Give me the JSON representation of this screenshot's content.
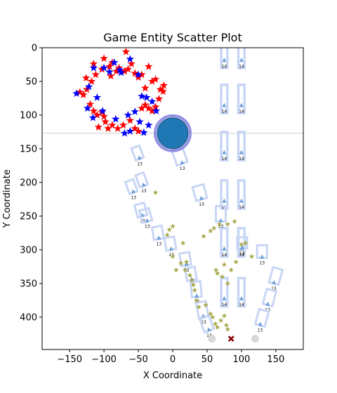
{
  "chart_data": {
    "type": "scatter",
    "title": "Game Entity Scatter Plot",
    "xlabel": "X Coordinate",
    "ylabel": "Y Coordinate",
    "xlim": [
      -190,
      190
    ],
    "ylim": [
      448,
      0
    ],
    "y_inverted": true,
    "grid": false,
    "x_ticks": [
      -150,
      -100,
      -50,
      0,
      50,
      100,
      150
    ],
    "y_ticks": [
      0,
      50,
      100,
      150,
      200,
      250,
      300,
      350,
      400
    ],
    "horizontal_line": {
      "y": 127,
      "color": "#cccccc"
    },
    "player": {
      "x": 0,
      "y": 127,
      "color": "#1f77b4",
      "outline": "#8080e0"
    },
    "colors": {
      "red_star": "#ff0000",
      "blue_star": "#0000ff",
      "olive_star": "#a8a84a",
      "vehicle": "#c8d6f5",
      "vehicle_marker": "#6fa0d8",
      "gray_circle": "#d8d8d8",
      "cross": "#8b0000"
    },
    "red_stars": [
      [
        -115,
        24
      ],
      [
        -100,
        16
      ],
      [
        -88,
        22
      ],
      [
        -78,
        30
      ],
      [
        -68,
        6
      ],
      [
        -60,
        24
      ],
      [
        -35,
        28
      ],
      [
        -25,
        47
      ],
      [
        -18,
        62
      ],
      [
        -13,
        56
      ],
      [
        -45,
        40
      ],
      [
        -30,
        50
      ],
      [
        -40,
        60
      ],
      [
        -55,
        38
      ],
      [
        -70,
        35
      ],
      [
        -82,
        35
      ],
      [
        -92,
        28
      ],
      [
        -103,
        32
      ],
      [
        -112,
        40
      ],
      [
        -118,
        50
      ],
      [
        -125,
        62
      ],
      [
        -130,
        70
      ],
      [
        -135,
        66
      ],
      [
        -120,
        84
      ],
      [
        -115,
        94
      ],
      [
        -110,
        100
      ],
      [
        -103,
        96
      ],
      [
        -98,
        110
      ],
      [
        -94,
        120
      ],
      [
        -88,
        115
      ],
      [
        -80,
        120
      ],
      [
        -72,
        115
      ],
      [
        -62,
        108
      ],
      [
        -55,
        120
      ],
      [
        -50,
        124
      ],
      [
        -45,
        90
      ],
      [
        -40,
        85
      ],
      [
        -35,
        90
      ],
      [
        -30,
        94
      ],
      [
        -25,
        88
      ],
      [
        -20,
        76
      ],
      [
        -14,
        65
      ],
      [
        -108,
        118
      ],
      [
        -100,
        102
      ],
      [
        -126,
        45
      ],
      [
        -90,
        42
      ],
      [
        -65,
        32
      ],
      [
        -50,
        44
      ]
    ],
    "blue_stars": [
      [
        -115,
        30
      ],
      [
        -100,
        30
      ],
      [
        -92,
        36
      ],
      [
        -85,
        22
      ],
      [
        -77,
        33
      ],
      [
        -62,
        17
      ],
      [
        -75,
        37
      ],
      [
        -50,
        40
      ],
      [
        -38,
        74
      ],
      [
        -30,
        80
      ],
      [
        -24,
        94
      ],
      [
        -45,
        72
      ],
      [
        -140,
        68
      ],
      [
        -122,
        58
      ],
      [
        -110,
        74
      ],
      [
        -124,
        90
      ],
      [
        -116,
        104
      ],
      [
        -102,
        94
      ],
      [
        -83,
        106
      ],
      [
        -70,
        127
      ],
      [
        -62,
        124
      ],
      [
        -48,
        110
      ],
      [
        -42,
        126
      ],
      [
        -35,
        115
      ],
      [
        -55,
        95
      ],
      [
        -65,
        100
      ]
    ],
    "olive_stars": [
      [
        -25,
        215
      ],
      [
        0,
        265
      ],
      [
        -5,
        270
      ],
      [
        -8,
        278
      ],
      [
        15,
        290
      ],
      [
        45,
        280
      ],
      [
        55,
        272
      ],
      [
        60,
        268
      ],
      [
        68,
        262
      ],
      [
        80,
        262
      ],
      [
        90,
        258
      ],
      [
        100,
        292
      ],
      [
        106,
        290
      ],
      [
        115,
        310
      ],
      [
        0,
        310
      ],
      [
        5,
        330
      ],
      [
        12,
        320
      ],
      [
        18,
        330
      ],
      [
        20,
        318
      ],
      [
        25,
        338
      ],
      [
        28,
        345
      ],
      [
        30,
        352
      ],
      [
        32,
        360
      ],
      [
        35,
        375
      ],
      [
        38,
        385
      ],
      [
        48,
        382
      ],
      [
        55,
        395
      ],
      [
        58,
        400
      ],
      [
        62,
        410
      ],
      [
        65,
        415
      ],
      [
        70,
        405
      ],
      [
        75,
        398
      ],
      [
        78,
        412
      ],
      [
        80,
        418
      ],
      [
        65,
        335
      ],
      [
        63,
        330
      ],
      [
        72,
        340
      ],
      [
        75,
        322
      ],
      [
        80,
        350
      ],
      [
        85,
        330
      ],
      [
        92,
        318
      ]
    ],
    "vehicles": [
      {
        "x": 14,
        "y": 172,
        "w": 16,
        "h": 22,
        "rot": -20,
        "label": "13"
      },
      {
        "x": -57,
        "y": 215,
        "w": 12,
        "h": 18,
        "rot": -20,
        "label": "13"
      },
      {
        "x": -42,
        "y": 205,
        "w": 12,
        "h": 18,
        "rot": -20,
        "label": "13"
      },
      {
        "x": -48,
        "y": 165,
        "w": 12,
        "h": 18,
        "rot": -20,
        "label": "13"
      },
      {
        "x": -44,
        "y": 250,
        "w": 14,
        "h": 18,
        "rot": -15,
        "label": "13"
      },
      {
        "x": -37,
        "y": 258,
        "w": 14,
        "h": 18,
        "rot": -15,
        "label": "13"
      },
      {
        "x": -20,
        "y": 284,
        "w": 14,
        "h": 18,
        "rot": -10,
        "label": "13"
      },
      {
        "x": -2,
        "y": 300,
        "w": 14,
        "h": 18,
        "rot": -10,
        "label": "13"
      },
      {
        "x": 20,
        "y": 323,
        "w": 14,
        "h": 18,
        "rot": -10,
        "label": "13"
      },
      {
        "x": 28,
        "y": 345,
        "w": 14,
        "h": 18,
        "rot": -10,
        "label": "13"
      },
      {
        "x": 42,
        "y": 225,
        "w": 16,
        "h": 20,
        "rot": -15,
        "label": "13"
      },
      {
        "x": 70,
        "y": 258,
        "w": 14,
        "h": 22,
        "rot": 0,
        "label": "13"
      },
      {
        "x": 35,
        "y": 370,
        "w": 14,
        "h": 22,
        "rot": -5,
        "label": "13"
      },
      {
        "x": 45,
        "y": 400,
        "w": 14,
        "h": 22,
        "rot": -10,
        "label": "13"
      },
      {
        "x": 53,
        "y": 420,
        "w": 14,
        "h": 20,
        "rot": -20,
        "label": "13"
      },
      {
        "x": 130,
        "y": 312,
        "w": 14,
        "h": 18,
        "rot": 0,
        "label": "13"
      },
      {
        "x": 147,
        "y": 350,
        "w": 14,
        "h": 22,
        "rot": 15,
        "label": "13"
      },
      {
        "x": 138,
        "y": 382,
        "w": 14,
        "h": 22,
        "rot": 15,
        "label": "13"
      },
      {
        "x": 127,
        "y": 412,
        "w": 14,
        "h": 22,
        "rot": 15,
        "label": "13"
      },
      {
        "x": 101,
        "y": 298,
        "w": 14,
        "h": 16,
        "rot": 0,
        "label": "13"
      }
    ],
    "column_vehicles": [
      {
        "x": 75,
        "y": 18,
        "label": "14"
      },
      {
        "x": 100,
        "y": 18,
        "label": "14"
      },
      {
        "x": 75,
        "y": 85,
        "label": "14"
      },
      {
        "x": 100,
        "y": 85,
        "label": "14"
      },
      {
        "x": 75,
        "y": 155,
        "label": "14"
      },
      {
        "x": 100,
        "y": 155,
        "label": "14"
      },
      {
        "x": 75,
        "y": 227,
        "label": "14"
      },
      {
        "x": 100,
        "y": 227,
        "label": "14"
      },
      {
        "x": 75,
        "y": 298,
        "label": "14"
      },
      {
        "x": 100,
        "y": 298,
        "label": "14"
      },
      {
        "x": 75,
        "y": 372,
        "label": "14"
      },
      {
        "x": 100,
        "y": 372,
        "label": "14"
      }
    ],
    "gray_circles": [
      [
        57,
        432
      ],
      [
        120,
        432
      ]
    ],
    "cross": [
      85,
      432
    ]
  }
}
